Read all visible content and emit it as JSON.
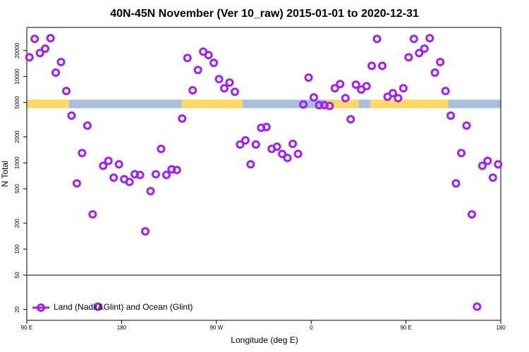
{
  "chart_data": {
    "type": "scatter",
    "title": "40N-45N November (Ver 10_raw)   2015-01-01 to 2020-12-31",
    "x_label": "Longitude (deg E)",
    "y_label": "N Total",
    "log_y": true,
    "legend_position": "bottomleft",
    "xlim": [
      90,
      540
    ],
    "ylim": [
      15,
      37000
    ],
    "xticks": [
      {
        "value": 90,
        "label": "90 E"
      },
      180,
      {
        "value": 270,
        "label": "90 W"
      },
      {
        "value": 360,
        "label": "0"
      },
      {
        "value": 450,
        "label": "90 E"
      },
      {
        "value": 540,
        "label": "180"
      }
    ],
    "yticks": [
      20,
      50,
      100,
      200,
      500,
      1000,
      2000,
      5000,
      10000,
      20000
    ],
    "reference_line": 50,
    "band": {
      "range": [
        4300,
        5400
      ],
      "segments": [
        {
          "from": 90,
          "to": 130,
          "color": "#ffd966"
        },
        {
          "from": 130,
          "to": 237,
          "color": "#a7bfdd"
        },
        {
          "from": 237,
          "to": 295,
          "color": "#ffd966"
        },
        {
          "from": 295,
          "to": 375,
          "color": "#a7bfdd"
        },
        {
          "from": 375,
          "to": 405,
          "color": "#ffd966"
        },
        {
          "from": 405,
          "to": 416,
          "color": "#a7bfdd"
        },
        {
          "from": 416,
          "to": 490,
          "color": "#ffd966"
        },
        {
          "from": 490,
          "to": 540,
          "color": "#a7bfdd"
        }
      ]
    },
    "x": [
      92.5,
      97.5,
      102.5,
      107.5,
      112.5,
      117.5,
      122.5,
      127.5,
      132.5,
      137.5,
      142.5,
      147.5,
      152.5,
      157.5,
      162.5,
      167.5,
      172.5,
      177.5,
      182.5,
      187.5,
      192.5,
      197.5,
      202.5,
      207.5,
      212.5,
      217.5,
      222.5,
      227.5,
      232.5,
      237.5,
      242.5,
      247.5,
      252.5,
      257.5,
      262.5,
      267.5,
      272.5,
      277.5,
      282.5,
      287.5,
      292.5,
      297.5,
      302.5,
      307.5,
      312.5,
      317.5,
      322.5,
      327.5,
      332.5,
      337.5,
      342.5,
      347.5,
      352.5,
      357.5,
      362.5,
      367.5,
      372.5,
      377.5,
      382.5,
      387.5,
      392.5,
      397.5,
      402.5,
      407.5,
      412.5,
      417.5,
      422.5,
      427.5,
      432.5,
      437.5,
      442.5,
      447.5,
      452.5,
      457.5,
      462.5,
      467.5,
      472.5,
      477.5,
      482.5,
      487.5,
      492.5,
      497.5,
      502.5,
      507.5,
      512.5,
      517.5,
      522.5,
      527.5,
      532.5,
      537.5
    ],
    "series": [
      {
        "name": "Land (Nadir&Glint) and Ocean (Glint)",
        "color": "#a020f0",
        "values": [
          16700,
          27300,
          18700,
          21000,
          27800,
          11100,
          14700,
          6800,
          3520,
          578,
          1300,
          2700,
          253,
          21.6,
          925,
          1054,
          673,
          962,
          647,
          601,
          738,
          724,
          161,
          470,
          738,
          1452,
          724,
          842,
          826,
          3260,
          16400,
          6920,
          11900,
          19400,
          17700,
          14400,
          9340,
          7310,
          8510,
          6650,
          1630,
          1820,
          962,
          1630,
          2550,
          2600,
          1452,
          1540,
          1270,
          1140,
          1660,
          1270,
          4750,
          9700,
          5730,
          4660,
          4660,
          4560,
          7310,
          8190,
          5620,
          3200,
          8040,
          7050,
          7740,
          13300,
          27300,
          13300,
          5830,
          6410,
          5620,
          7310,
          16700,
          27300,
          18700,
          21000,
          27800,
          11100,
          14700,
          6800,
          3520,
          578,
          1300,
          2700,
          253,
          21.6,
          925,
          1054,
          673,
          962
        ]
      }
    ]
  }
}
